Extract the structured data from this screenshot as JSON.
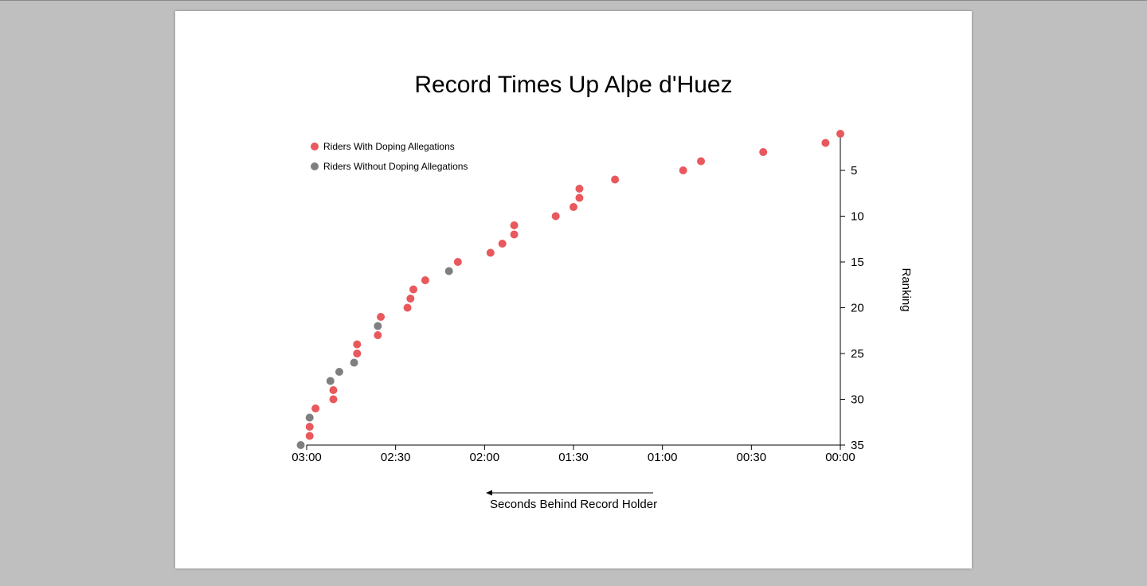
{
  "page": {
    "background": "#bfbfbf",
    "card_background": "#ffffff"
  },
  "colors": {
    "doping": "#e8585c",
    "no_doping": "#7f7f7f",
    "axis": "#000000"
  },
  "chart_data": {
    "type": "scatter",
    "title": "Record Times Up Alpe d'Huez",
    "xlabel": "Seconds Behind Record Holder",
    "ylabel": "Ranking",
    "x_axis_reversed": true,
    "x_unit": "seconds behind record holder",
    "xlim": [
      0,
      180
    ],
    "ylim": [
      1,
      35
    ],
    "y_axis_position": "right",
    "grid": false,
    "legend_position": "top-left",
    "x_ticks": [
      {
        "value": 180,
        "label": "03:00"
      },
      {
        "value": 150,
        "label": "02:30"
      },
      {
        "value": 120,
        "label": "02:00"
      },
      {
        "value": 90,
        "label": "01:30"
      },
      {
        "value": 60,
        "label": "01:00"
      },
      {
        "value": 30,
        "label": "00:30"
      },
      {
        "value": 0,
        "label": "00:00"
      }
    ],
    "y_ticks": [
      {
        "value": 5,
        "label": "5"
      },
      {
        "value": 10,
        "label": "10"
      },
      {
        "value": 15,
        "label": "15"
      },
      {
        "value": 20,
        "label": "20"
      },
      {
        "value": 25,
        "label": "25"
      },
      {
        "value": 30,
        "label": "30"
      },
      {
        "value": 35,
        "label": "35"
      }
    ],
    "series": [
      {
        "name": "Riders With Doping Allegations",
        "color": "#e8585c",
        "points": [
          {
            "x": 0,
            "y": 1
          },
          {
            "x": 5,
            "y": 2
          },
          {
            "x": 26,
            "y": 3
          },
          {
            "x": 47,
            "y": 4
          },
          {
            "x": 53,
            "y": 5
          },
          {
            "x": 76,
            "y": 6
          },
          {
            "x": 88,
            "y": 7
          },
          {
            "x": 88,
            "y": 8
          },
          {
            "x": 90,
            "y": 9
          },
          {
            "x": 96,
            "y": 10
          },
          {
            "x": 110,
            "y": 11
          },
          {
            "x": 110,
            "y": 12
          },
          {
            "x": 114,
            "y": 13
          },
          {
            "x": 118,
            "y": 14
          },
          {
            "x": 129,
            "y": 15
          },
          {
            "x": 140,
            "y": 17
          },
          {
            "x": 144,
            "y": 18
          },
          {
            "x": 145,
            "y": 19
          },
          {
            "x": 146,
            "y": 20
          },
          {
            "x": 155,
            "y": 21
          },
          {
            "x": 156,
            "y": 23
          },
          {
            "x": 163,
            "y": 24
          },
          {
            "x": 163,
            "y": 25
          },
          {
            "x": 171,
            "y": 29
          },
          {
            "x": 171,
            "y": 30
          },
          {
            "x": 177,
            "y": 31
          },
          {
            "x": 179,
            "y": 33
          },
          {
            "x": 179,
            "y": 34
          }
        ]
      },
      {
        "name": "Riders Without Doping Allegations",
        "color": "#7f7f7f",
        "points": [
          {
            "x": 132,
            "y": 16
          },
          {
            "x": 156,
            "y": 22
          },
          {
            "x": 164,
            "y": 26
          },
          {
            "x": 169,
            "y": 27
          },
          {
            "x": 172,
            "y": 28
          },
          {
            "x": 179,
            "y": 32
          },
          {
            "x": 182,
            "y": 35
          }
        ]
      }
    ]
  }
}
